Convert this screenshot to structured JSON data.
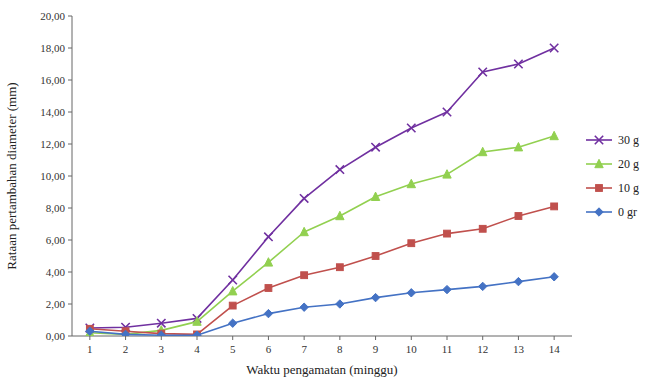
{
  "chart_data": {
    "type": "line",
    "xlabel": "Waktu pengamatan (minggu)",
    "ylabel": "Rataan pertambahan diameter (mm)",
    "x": [
      1,
      2,
      3,
      4,
      5,
      6,
      7,
      8,
      9,
      10,
      11,
      12,
      13,
      14
    ],
    "xlim": [
      0.5,
      14.5
    ],
    "xticks": [
      1,
      2,
      3,
      4,
      5,
      6,
      7,
      8,
      9,
      10,
      11,
      12,
      13,
      14
    ],
    "ylim": [
      0,
      20
    ],
    "yticks": [
      {
        "value": 0.0,
        "label": "0,00"
      },
      {
        "value": 2.0,
        "label": "2,00"
      },
      {
        "value": 4.0,
        "label": "4,00"
      },
      {
        "value": 6.0,
        "label": "6,00"
      },
      {
        "value": 8.0,
        "label": "8,00"
      },
      {
        "value": 10.0,
        "label": "10,00"
      },
      {
        "value": 12.0,
        "label": "12,00"
      },
      {
        "value": 14.0,
        "label": "14,00"
      },
      {
        "value": 16.0,
        "label": "16,00"
      },
      {
        "value": 18.0,
        "label": "18,00"
      },
      {
        "value": 20.0,
        "label": "20,00"
      }
    ],
    "grid": false,
    "legend": "right",
    "series": [
      {
        "name": "30 g",
        "color": "#7030a0",
        "marker": "x",
        "values": [
          0.5,
          0.55,
          0.8,
          1.1,
          3.5,
          6.2,
          8.6,
          10.4,
          11.8,
          13.0,
          14.0,
          16.5,
          17.0,
          18.0
        ]
      },
      {
        "name": "20 g",
        "color": "#92d050",
        "marker": "triangle",
        "values": [
          0.2,
          0.1,
          0.35,
          0.9,
          2.8,
          4.6,
          6.5,
          7.5,
          8.7,
          9.5,
          10.1,
          11.5,
          11.8,
          12.5
        ]
      },
      {
        "name": "10 g",
        "color": "#c0504d",
        "marker": "square",
        "values": [
          0.45,
          0.3,
          0.15,
          0.1,
          1.9,
          3.0,
          3.8,
          4.3,
          5.0,
          5.8,
          6.4,
          6.7,
          7.5,
          8.1
        ]
      },
      {
        "name": "0 gr",
        "color": "#4472c4",
        "marker": "diamond",
        "values": [
          0.3,
          0.1,
          0.05,
          0.05,
          0.8,
          1.4,
          1.8,
          2.0,
          2.4,
          2.7,
          2.9,
          3.1,
          3.4,
          3.7
        ]
      }
    ]
  }
}
